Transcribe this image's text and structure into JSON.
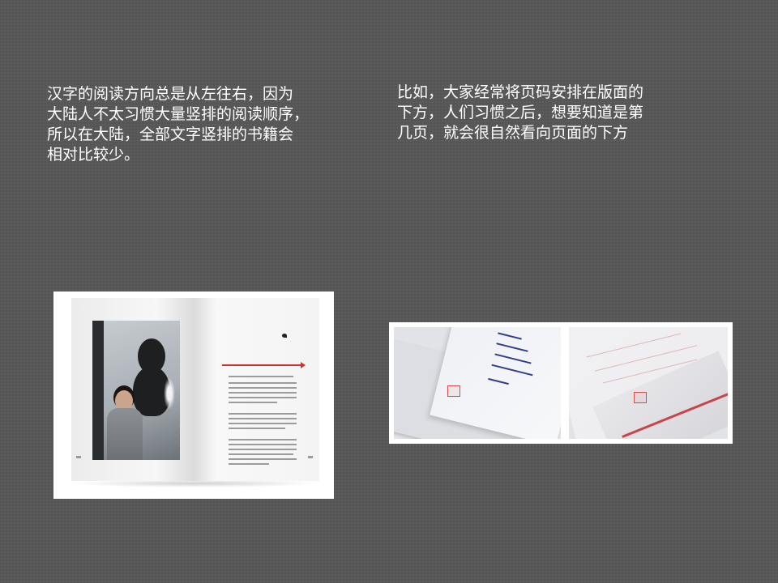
{
  "slide": {
    "left_text": "汉字的阅读方向总是从左往右，因为\n大陆人不太习惯大量竖排的阅读顺序，\n所以在大陆，全部文字竖排的书籍会\n相对比较少。",
    "right_text": "比如，大家经常将页码安排在版面的\n下方，人们习惯之后，想要知道是第\n几页，就会很自然看向页面的下方"
  },
  "colors": {
    "background": "#565656",
    "text": "#ffffff",
    "accent_red": "#d32f2f"
  }
}
